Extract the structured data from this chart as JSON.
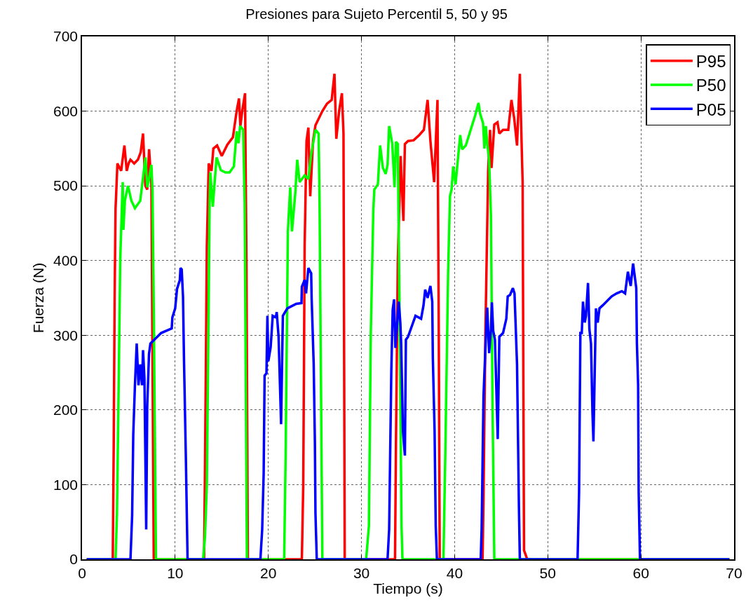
{
  "chart_data": {
    "type": "line",
    "title": "Presiones para Sujeto Percentil 5, 50 y 95",
    "xlabel": "Tiempo (s)",
    "ylabel": "Fuerza (N)",
    "xlim": [
      0,
      70
    ],
    "xticks": [
      0,
      10,
      20,
      30,
      40,
      50,
      60,
      70
    ],
    "ylim": [
      0,
      700
    ],
    "yticks": [
      0,
      100,
      200,
      300,
      400,
      500,
      600,
      700
    ],
    "grid": true,
    "legend": "top right",
    "line_style": "solid",
    "marker": "none",
    "series": [
      {
        "name": "P95",
        "color": "#ff0000",
        "x": [
          0.5,
          3.3,
          3.4,
          3.5,
          3.6,
          3.7,
          3.8,
          4.0,
          4.2,
          4.55,
          4.8,
          5.0,
          5.2,
          5.6,
          6.0,
          6.3,
          6.55,
          6.8,
          7.0,
          7.2,
          7.45,
          7.55,
          7.7,
          13.1,
          13.2,
          13.4,
          13.6,
          13.9,
          14.1,
          14.5,
          15.0,
          15.6,
          16.2,
          16.6,
          16.85,
          17.0,
          17.2,
          17.5,
          17.65,
          17.8,
          23.6,
          23.75,
          23.9,
          24.1,
          24.3,
          24.5,
          24.8,
          25.06,
          25.8,
          26.3,
          26.8,
          27.1,
          27.3,
          27.6,
          27.9,
          28.07,
          28.2,
          33.6,
          33.7,
          33.9,
          34.2,
          34.5,
          34.66,
          35.0,
          35.6,
          36.2,
          36.7,
          37.1,
          37.4,
          37.8,
          38.16,
          38.3,
          38.4,
          43.0,
          43.1,
          43.3,
          43.6,
          43.8,
          43.96,
          44.26,
          44.6,
          44.8,
          45.2,
          45.76,
          46.1,
          46.4,
          46.7,
          47.0,
          47.3,
          47.45,
          47.8,
          69.5
        ],
        "values": [
          0,
          0,
          150,
          350,
          470,
          500,
          530,
          525,
          520,
          554,
          520,
          530,
          535,
          530,
          535,
          545,
          570,
          500,
          495,
          549,
          500,
          300,
          0,
          0,
          120,
          420,
          530,
          520,
          550,
          554,
          540,
          555,
          565,
          600,
          617,
          580,
          600,
          624,
          400,
          0,
          0,
          100,
          420,
          560,
          578,
          486,
          560,
          581,
          600,
          610,
          615,
          650,
          563,
          600,
          624,
          570,
          0,
          0,
          150,
          400,
          540,
          453,
          556,
          560,
          561,
          568,
          575,
          615,
          560,
          505,
          615,
          300,
          0,
          0,
          80,
          300,
          520,
          575,
          524,
          582,
          585,
          570,
          575,
          575,
          615,
          590,
          554,
          650,
          505,
          12,
          0,
          0
        ]
      },
      {
        "name": "P50",
        "color": "#00ff00",
        "x": [
          0.5,
          3.6,
          3.75,
          3.9,
          4.1,
          4.3,
          4.37,
          4.44,
          4.6,
          4.93,
          5.3,
          5.68,
          6.25,
          6.44,
          6.81,
          7.0,
          7.2,
          7.45,
          7.56,
          7.68,
          7.94,
          13.0,
          13.2,
          13.4,
          13.59,
          13.7,
          13.77,
          14.04,
          14.44,
          14.9,
          15.4,
          15.84,
          16.3,
          16.6,
          16.8,
          16.97,
          17.3,
          17.46,
          17.7,
          21.7,
          21.86,
          22.1,
          22.35,
          22.54,
          22.9,
          23.1,
          23.36,
          23.9,
          24.3,
          24.6,
          25.06,
          25.4,
          25.5,
          25.8,
          30.5,
          30.8,
          31.0,
          31.27,
          31.38,
          31.76,
          32.0,
          32.3,
          32.6,
          32.8,
          32.97,
          33.3,
          33.55,
          33.7,
          33.9,
          34.1,
          34.3,
          34.4,
          38.8,
          39.0,
          39.3,
          39.5,
          39.67,
          39.85,
          40.1,
          40.4,
          40.6,
          40.8,
          41.2,
          41.8,
          42.2,
          42.56,
          42.75,
          43.05,
          43.2,
          43.35,
          43.5,
          43.7,
          43.9,
          44.07,
          44.26,
          69.5
        ],
        "values": [
          0,
          0,
          60,
          200,
          400,
          480,
          505,
          441,
          480,
          500,
          480,
          470,
          480,
          500,
          538,
          498,
          510,
          528,
          495,
          360,
          0,
          0,
          30,
          101,
          336,
          481,
          518,
          472,
          538,
          521,
          518,
          518,
          526,
          573,
          557,
          580,
          575,
          477,
          0,
          0,
          141,
          439,
          498,
          439,
          491,
          535,
          505,
          514,
          509,
          542,
          575,
          570,
          477,
          0,
          0,
          45,
          302,
          467,
          495,
          502,
          554,
          524,
          516,
          528,
          580,
          557,
          498,
          559,
          556,
          312,
          45,
          0,
          0,
          141,
          383,
          486,
          495,
          526,
          502,
          542,
          568,
          549,
          554,
          578,
          594,
          611,
          596,
          584,
          550,
          580,
          557,
          535,
          460,
          207,
          0,
          0
        ]
      },
      {
        "name": "P05",
        "color": "#0000ff",
        "x": [
          0.5,
          5.2,
          5.38,
          5.5,
          5.68,
          5.87,
          6.06,
          6.25,
          6.44,
          6.55,
          6.7,
          6.89,
          7.0,
          7.19,
          7.34,
          7.75,
          8.5,
          9.63,
          9.7,
          10.0,
          10.2,
          10.5,
          10.57,
          10.7,
          10.84,
          10.95,
          11.14,
          11.33,
          19.15,
          19.34,
          19.5,
          19.6,
          19.8,
          19.9,
          20.0,
          20.25,
          20.47,
          20.8,
          20.9,
          21.1,
          21.37,
          21.56,
          22.05,
          23.0,
          23.56,
          23.6,
          23.9,
          24.05,
          24.3,
          24.6,
          24.65,
          24.87,
          25.0,
          25.06,
          25.2,
          32.8,
          32.97,
          33.2,
          33.35,
          33.5,
          33.64,
          34.0,
          34.17,
          34.26,
          34.45,
          34.66,
          34.77,
          35.0,
          35.4,
          35.8,
          36.4,
          36.66,
          36.84,
          37.1,
          37.4,
          37.6,
          37.66,
          37.85,
          37.97,
          38.1,
          42.8,
          42.9,
          43.1,
          43.4,
          43.5,
          43.7,
          43.9,
          44.0,
          44.14,
          44.33,
          44.63,
          44.8,
          45.2,
          45.55,
          45.7,
          45.95,
          46.25,
          46.43,
          46.7,
          46.9,
          47.0,
          53.2,
          53.36,
          53.5,
          53.65,
          53.78,
          53.97,
          54.1,
          54.32,
          54.47,
          54.64,
          54.8,
          54.9,
          55.17,
          55.36,
          55.55,
          55.9,
          56.86,
          57.4,
          57.95,
          58.3,
          58.6,
          58.9,
          59.16,
          59.5,
          59.57,
          59.7,
          59.76,
          59.9,
          69.5
        ],
        "values": [
          0,
          0,
          59,
          167,
          233,
          289,
          233,
          261,
          233,
          280,
          242,
          40,
          205,
          275,
          289,
          294,
          303,
          309,
          324,
          336,
          362,
          374,
          390,
          388,
          352,
          265,
          141,
          0,
          0,
          40,
          115,
          246,
          249,
          326,
          265,
          284,
          326,
          324,
          331,
          298,
          181,
          326,
          336,
          342,
          343,
          365,
          374,
          356,
          390,
          383,
          350,
          261,
          156,
          62,
          0,
          0,
          40,
          250,
          334,
          348,
          283,
          345,
          317,
          289,
          172,
          139,
          294,
          298,
          312,
          326,
          322,
          340,
          361,
          350,
          366,
          345,
          270,
          172,
          45,
          0,
          0,
          40,
          218,
          312,
          337,
          276,
          308,
          344,
          306,
          294,
          161,
          298,
          303,
          322,
          352,
          354,
          363,
          356,
          261,
          73,
          0,
          0,
          90,
          303,
          303,
          345,
          317,
          326,
          370,
          308,
          289,
          195,
          158,
          336,
          317,
          336,
          340,
          352,
          356,
          359,
          356,
          385,
          366,
          396,
          363,
          289,
          233,
          90,
          0,
          0
        ]
      }
    ]
  }
}
